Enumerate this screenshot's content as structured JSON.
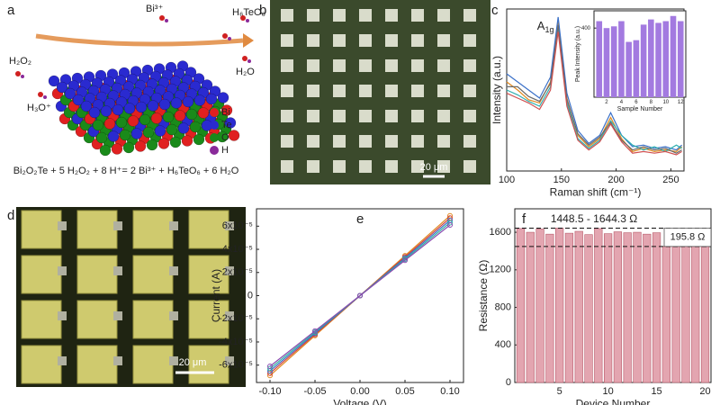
{
  "panels": {
    "a": {
      "label": "a",
      "equation": "Bi₂O₂Te + 5 H₂O₂ + 8 H⁺= 2 Bi³⁺ + H₆TeO₆ + 6 H₂O",
      "species": [
        "H₂O₂",
        "H₃O⁺",
        "Bi³⁺",
        "H₆TeO₆",
        "H₂O"
      ],
      "legend": [
        {
          "name": "Bi",
          "color": "#e02020"
        },
        {
          "name": "Te",
          "color": "#2a2ad0"
        },
        {
          "name": "O",
          "color": "#1a8a1a"
        },
        {
          "name": "H",
          "color": "#8a2a9a"
        }
      ]
    },
    "b": {
      "label": "b",
      "scale_bar": "20 μm"
    },
    "c": {
      "label": "c"
    },
    "d": {
      "label": "d",
      "scale_bar": "20 μm"
    },
    "e": {
      "label": "e"
    },
    "f": {
      "label": "f"
    }
  },
  "chart_data": [
    {
      "type": "line",
      "xlabel": "Raman shift (cm⁻¹)",
      "ylabel": "Intensity (a.u.)",
      "annotation": {
        "text": "A",
        "sub": "1g"
      },
      "x": [
        100,
        110,
        120,
        130,
        140,
        147,
        155,
        165,
        175,
        185,
        195,
        205,
        215,
        225,
        235,
        245,
        255,
        260
      ],
      "xlim": [
        100,
        262
      ],
      "xticks": [
        100,
        150,
        200,
        250
      ],
      "ylim": [
        0,
        1
      ],
      "series": [
        {
          "color": "#e08a20",
          "values": [
            0.55,
            0.5,
            0.44,
            0.42,
            0.55,
            0.92,
            0.45,
            0.22,
            0.15,
            0.2,
            0.33,
            0.2,
            0.12,
            0.14,
            0.12,
            0.13,
            0.12,
            0.15
          ]
        },
        {
          "color": "#3a70c8",
          "values": [
            0.6,
            0.55,
            0.5,
            0.45,
            0.58,
            0.95,
            0.48,
            0.25,
            0.17,
            0.22,
            0.36,
            0.22,
            0.15,
            0.16,
            0.14,
            0.15,
            0.13,
            0.16
          ]
        },
        {
          "color": "#30b0b0",
          "values": [
            0.5,
            0.47,
            0.43,
            0.4,
            0.52,
            0.88,
            0.42,
            0.2,
            0.14,
            0.19,
            0.31,
            0.22,
            0.16,
            0.13,
            0.15,
            0.12,
            0.16,
            0.14
          ]
        },
        {
          "color": "#6a6a6a",
          "values": [
            0.52,
            0.52,
            0.46,
            0.43,
            0.54,
            0.9,
            0.44,
            0.23,
            0.16,
            0.21,
            0.3,
            0.19,
            0.13,
            0.15,
            0.13,
            0.14,
            0.11,
            0.13
          ]
        },
        {
          "color": "#d05050",
          "values": [
            0.48,
            0.45,
            0.42,
            0.38,
            0.5,
            0.86,
            0.4,
            0.19,
            0.13,
            0.18,
            0.29,
            0.18,
            0.11,
            0.12,
            0.11,
            0.12,
            0.1,
            0.12
          ]
        }
      ]
    },
    {
      "type": "bar",
      "xlabel": "Sample Number",
      "ylabel": "Peak Intensity (a.u.)",
      "color": "#a37ae0",
      "x": [
        1,
        2,
        3,
        4,
        5,
        6,
        7,
        8,
        9,
        10,
        11,
        12
      ],
      "xlim": [
        0.3,
        12.7
      ],
      "xticks": [
        2,
        4,
        6,
        8,
        10,
        12
      ],
      "values": [
        440,
        400,
        410,
        440,
        320,
        330,
        420,
        450,
        430,
        440,
        470,
        440
      ],
      "ylim": [
        0,
        500
      ],
      "yticks": [
        400
      ]
    },
    {
      "type": "line",
      "xlabel": "Voltage (V)",
      "ylabel": "Current (A)",
      "markers": true,
      "x": [
        -0.1,
        -0.05,
        0,
        0.05,
        0.1
      ],
      "xlim": [
        -0.115,
        0.115
      ],
      "xticks": [
        {
          "value": -0.1,
          "label": "-0.10"
        },
        -0.05,
        {
          "value": 0,
          "label": "0.00"
        },
        0.05,
        {
          "value": 0.1,
          "label": "0.10"
        }
      ],
      "ylim": [
        -7.5e-05,
        7.5e-05
      ],
      "yticks": [
        {
          "value": -6e-05,
          "label": "-6x10⁻⁵"
        },
        {
          "value": -4e-05,
          "label": "-4x10⁻⁵"
        },
        {
          "value": -2e-05,
          "label": "-2x10⁻⁵"
        },
        0,
        {
          "value": 2e-05,
          "label": "2x10⁻⁵"
        },
        {
          "value": 4e-05,
          "label": "4x10⁻⁵"
        },
        {
          "value": 6e-05,
          "label": "6x10⁻⁵"
        }
      ],
      "series": [
        {
          "color": "#e08a20",
          "values": [
            -6.9e-05,
            -3.45e-05,
            0,
            3.45e-05,
            6.9e-05
          ]
        },
        {
          "color": "#d04040",
          "values": [
            -6.7e-05,
            -3.35e-05,
            0,
            3.35e-05,
            6.7e-05
          ]
        },
        {
          "color": "#3a70c8",
          "values": [
            -6.5e-05,
            -3.25e-05,
            0,
            3.25e-05,
            6.5e-05
          ]
        },
        {
          "color": "#30b0a0",
          "values": [
            -6.3e-05,
            -3.15e-05,
            0,
            3.15e-05,
            6.3e-05
          ]
        },
        {
          "color": "#8a4ab0",
          "values": [
            -6.1e-05,
            -3.05e-05,
            0,
            3.05e-05,
            6.1e-05
          ]
        }
      ]
    },
    {
      "type": "bar",
      "xlabel": "Device Number",
      "ylabel": "Resistance (Ω)",
      "color": "#e3a5b0",
      "x": [
        1,
        2,
        3,
        4,
        5,
        6,
        7,
        8,
        9,
        10,
        11,
        12,
        13,
        14,
        15,
        16,
        17,
        18,
        19,
        20
      ],
      "xlim": [
        0.4,
        20.6
      ],
      "xticks": [
        5,
        10,
        15,
        20
      ],
      "values": [
        1640,
        1600,
        1635,
        1580,
        1644.3,
        1590,
        1610,
        1575,
        1640,
        1585,
        1605,
        1595,
        1600,
        1580,
        1595,
        1448.5,
        1600,
        1590,
        1635,
        1580
      ],
      "ylim": [
        0,
        1850
      ],
      "yticks": [
        0,
        400,
        800,
        1200,
        1600
      ],
      "reference_lines": [
        1644.3,
        1448.5
      ],
      "annotations": [
        "1448.5 - 1644.3 Ω",
        "195.8 Ω"
      ]
    }
  ]
}
